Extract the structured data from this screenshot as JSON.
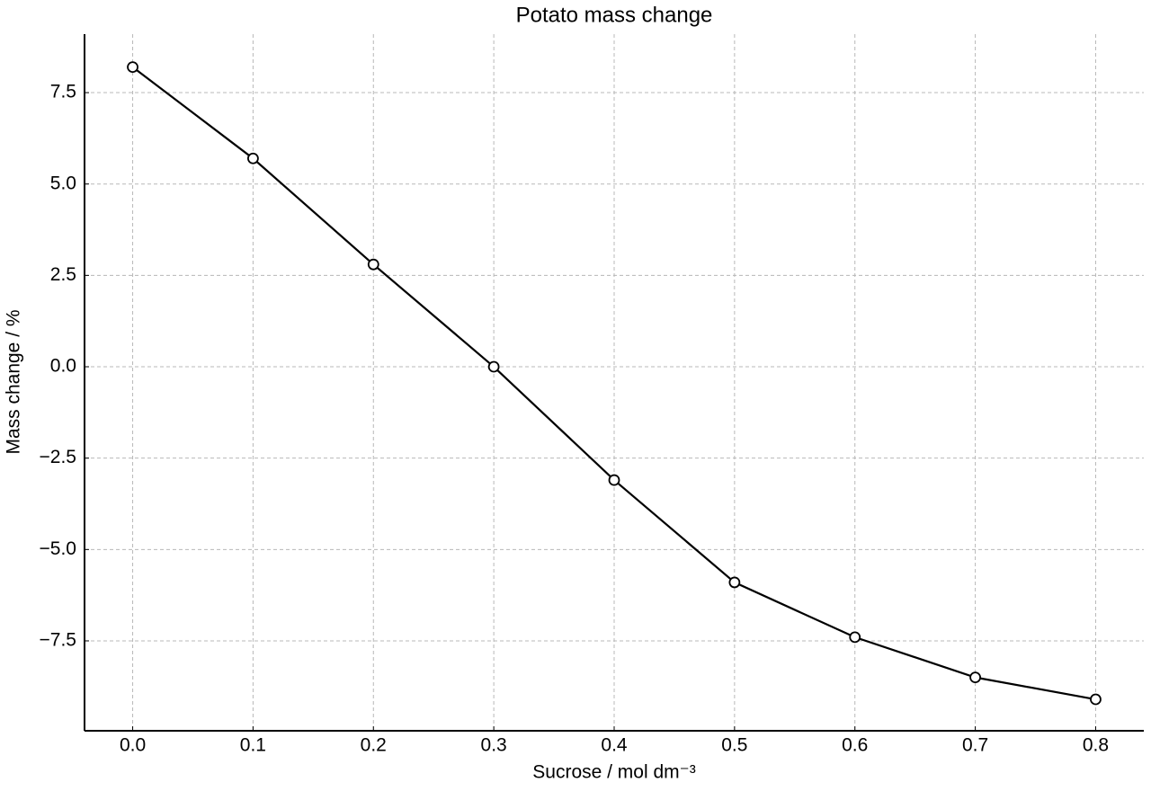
{
  "chart_data": {
    "type": "line",
    "title": "Potato mass change",
    "x_label": "Sucrose / mol dm⁻³",
    "y_label": "Mass change / %",
    "x": [
      0.0,
      0.1,
      0.2,
      0.3,
      0.4,
      0.5,
      0.6,
      0.7,
      0.8
    ],
    "series": [
      {
        "color": "#000000",
        "values": [
          8.2,
          5.7,
          2.8,
          0.0,
          -3.1,
          -5.9,
          -7.4,
          -8.5,
          -9.1
        ]
      }
    ],
    "xlim": [
      -0.04,
      0.84
    ],
    "ylim": [
      -9.96,
      9.1
    ],
    "xticks": [
      {
        "value": 0,
        "label": "0.0"
      },
      0.1,
      0.2,
      0.3,
      0.4,
      0.5,
      0.6,
      0.7,
      0.8
    ],
    "yticks": [
      {
        "value": -7.5,
        "label": "−7.5"
      },
      {
        "value": -5,
        "label": "−5.0"
      },
      {
        "value": -2.5,
        "label": "−2.5"
      },
      {
        "value": 0,
        "label": "0.0"
      },
      2.5,
      {
        "value": 5,
        "label": "5.0"
      },
      7.5
    ],
    "grid": true
  }
}
